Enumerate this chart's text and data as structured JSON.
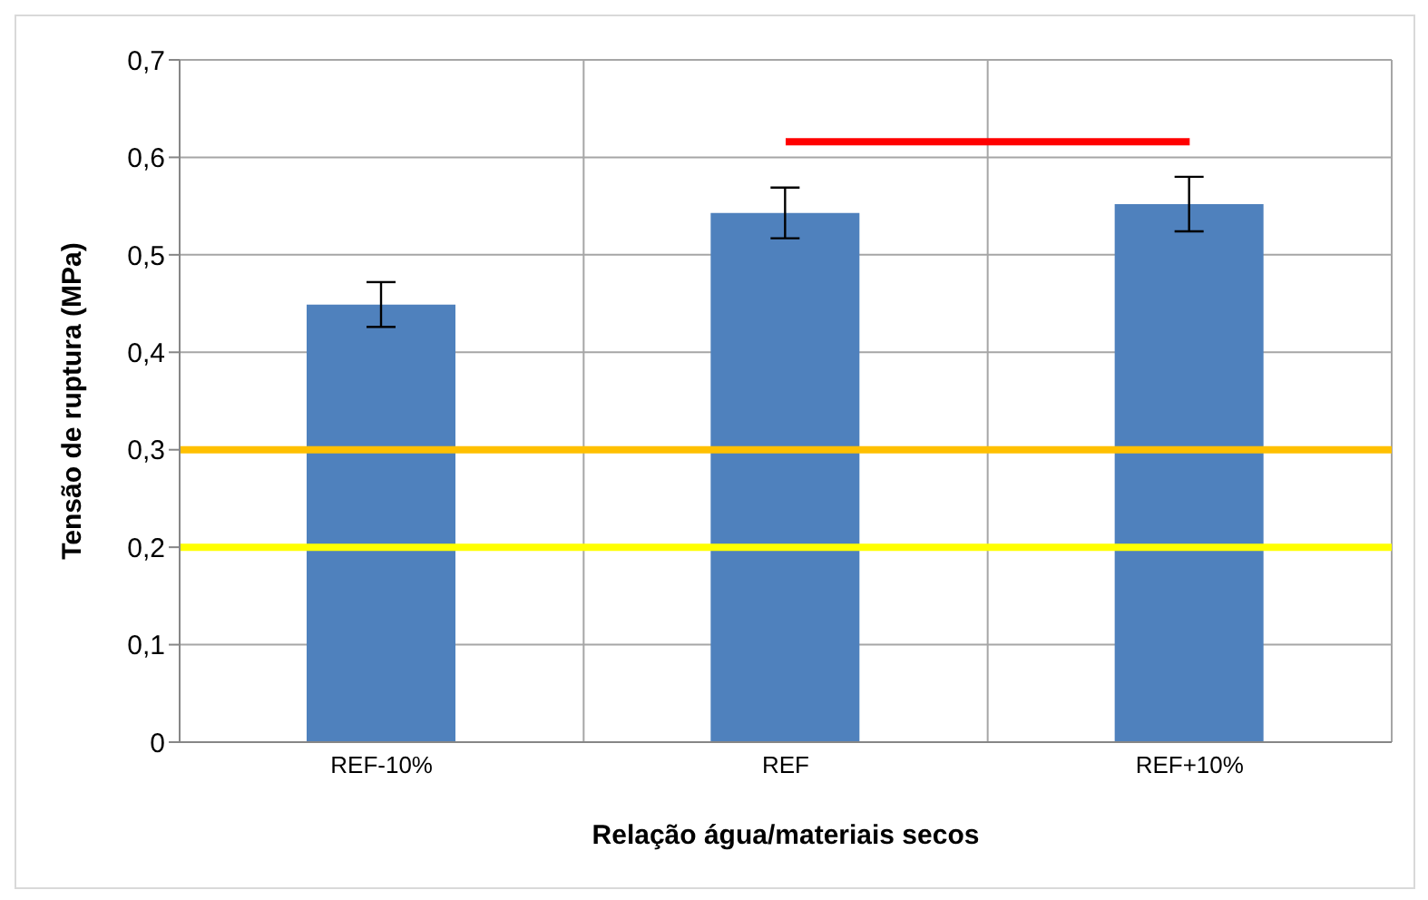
{
  "chart_data": {
    "type": "bar",
    "xlabel": "Relação água/materiais secos",
    "ylabel": "Tensão de ruptura (MPa)",
    "categories": [
      "REF-10%",
      "REF",
      "REF+10%"
    ],
    "series": [
      {
        "color": "#4f81bd",
        "values": [
          0.449,
          0.543,
          0.552
        ],
        "errors": [
          0.023,
          0.026,
          0.028
        ]
      },
      {
        "type": "line",
        "color": "#ff0000",
        "values": [
          null,
          0.616,
          0.616
        ],
        "marker": "none"
      }
    ],
    "ylim": [
      0,
      0.7
    ],
    "yticks": [
      {
        "value": 0,
        "label": "0"
      },
      {
        "value": 0.1,
        "label": "0,1"
      },
      {
        "value": 0.2,
        "label": "0,2"
      },
      {
        "value": 0.3,
        "label": "0,3"
      },
      {
        "value": 0.4,
        "label": "0,4"
      },
      {
        "value": 0.5,
        "label": "0,5"
      },
      {
        "value": 0.6,
        "label": "0,6"
      },
      {
        "value": 0.7,
        "label": "0,7"
      }
    ],
    "grid": true,
    "ref_lines": [
      {
        "axis": "y",
        "value": 0.3,
        "color": "#ffc000"
      },
      {
        "axis": "y",
        "value": 0.2,
        "color": "#ffff00"
      }
    ]
  }
}
